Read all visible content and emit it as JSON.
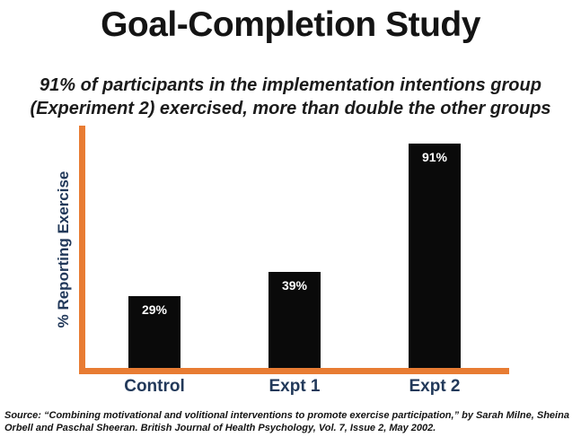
{
  "title": "Goal-Completion Study",
  "subtitle": {
    "line1": "91% of participants in the implementation intentions group",
    "line2": "(Experiment 2) exercised, more than double the other groups"
  },
  "chart_data": {
    "type": "bar",
    "categories": [
      "Control",
      "Expt 1",
      "Expt 2"
    ],
    "values": [
      29,
      39,
      91
    ],
    "value_labels": [
      "29%",
      "39%",
      "91%"
    ],
    "title": "",
    "xlabel": "",
    "ylabel": "% Reporting Exercise",
    "ylim": [
      0,
      100
    ],
    "grid": false,
    "legend": "none",
    "bar_color": "#0A0A0A",
    "axis_color": "#E87C33",
    "category_label_color": "#22395A",
    "value_label_color": "#FFFFFF"
  },
  "source": "Source: “Combining motivational and volitional interventions to promote exercise participation,” by Sarah Milne, Sheina Orbell and Paschal Sheeran. British Journal of Health Psychology, Vol. 7, Issue 2, May 2002."
}
